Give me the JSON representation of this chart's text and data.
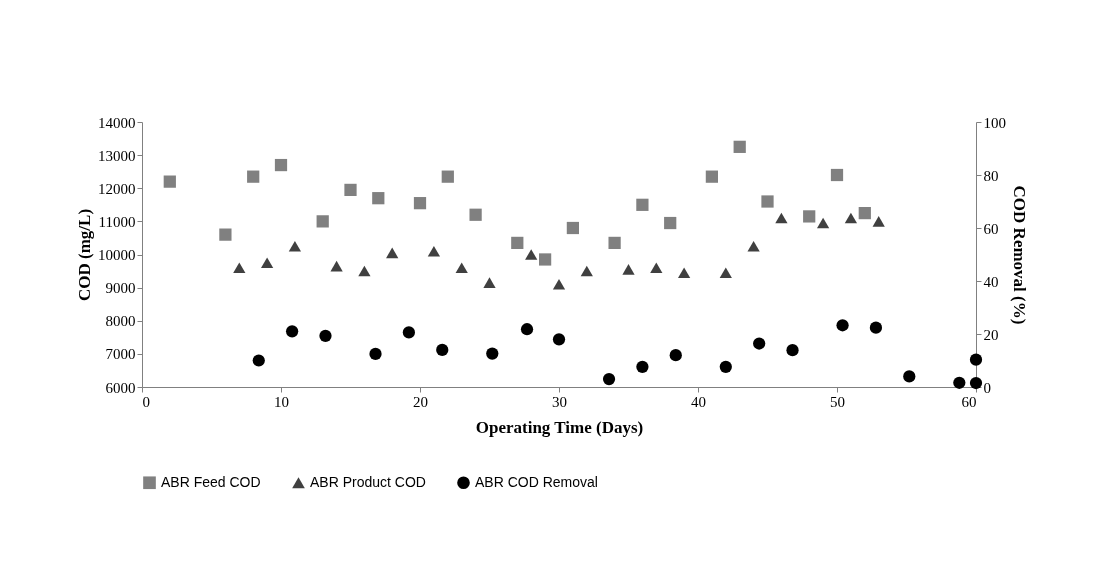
{
  "chart_data": {
    "type": "scatter",
    "xlabel": "Operating Time (Days)",
    "ylabel": "COD (mg/L)",
    "y2label": "COD Removal (%)",
    "xlim": [
      0,
      60
    ],
    "xticks": [
      0,
      10,
      20,
      30,
      40,
      50,
      60
    ],
    "ylim": [
      6000,
      14000
    ],
    "yticks": [
      6000,
      7000,
      8000,
      9000,
      10000,
      11000,
      12000,
      13000,
      14000
    ],
    "y2lim": [
      0,
      100
    ],
    "y2ticks": [
      0,
      20,
      40,
      60,
      80,
      100
    ],
    "grid": false,
    "legend": "bottom",
    "series": [
      {
        "name": "ABR Feed COD",
        "color": "#808080",
        "marker": "square",
        "x": [
          2,
          6,
          8,
          10,
          13,
          15,
          17,
          20,
          22,
          24,
          27,
          29,
          31,
          34,
          36,
          38,
          41,
          43,
          45,
          48,
          50,
          52
        ],
        "values": [
          12200,
          10600,
          12350,
          12700,
          11000,
          11950,
          11700,
          11550,
          12350,
          11200,
          10350,
          9850,
          10800,
          10350,
          11500,
          10950,
          12350,
          13250,
          11600,
          11150,
          12400,
          11250
        ]
      },
      {
        "name": "ABR Product COD",
        "color": "#404040",
        "marker": "triangle",
        "x": [
          7,
          9,
          11,
          14,
          16,
          18,
          21,
          23,
          25,
          28,
          30,
          32,
          35,
          37,
          39,
          42,
          44,
          46,
          49,
          51,
          53
        ],
        "values": [
          9600,
          9750,
          10250,
          9650,
          9500,
          10050,
          10100,
          9600,
          9150,
          10000,
          9100,
          9500,
          9550,
          9600,
          9450,
          9450,
          10250,
          11100,
          10950,
          11100,
          11000
        ]
      },
      {
        "name": "ABR COD Removal",
        "color": "#000000",
        "marker": "circle",
        "axis": "y2",
        "x": [
          8.4,
          10.8,
          13.2,
          16.8,
          19.2,
          21.6,
          25.2,
          27.7,
          30,
          33.6,
          36,
          38.4,
          42,
          44.4,
          46.8,
          50.4,
          52.8,
          55.2,
          58.8,
          60,
          60
        ],
        "values": [
          10,
          21,
          19.3,
          12.5,
          20.6,
          14,
          12.6,
          21.8,
          18,
          3,
          7.6,
          12,
          7.6,
          16.4,
          13.9,
          23.3,
          22.4,
          4,
          1.6,
          1.5,
          10.3
        ]
      }
    ]
  }
}
